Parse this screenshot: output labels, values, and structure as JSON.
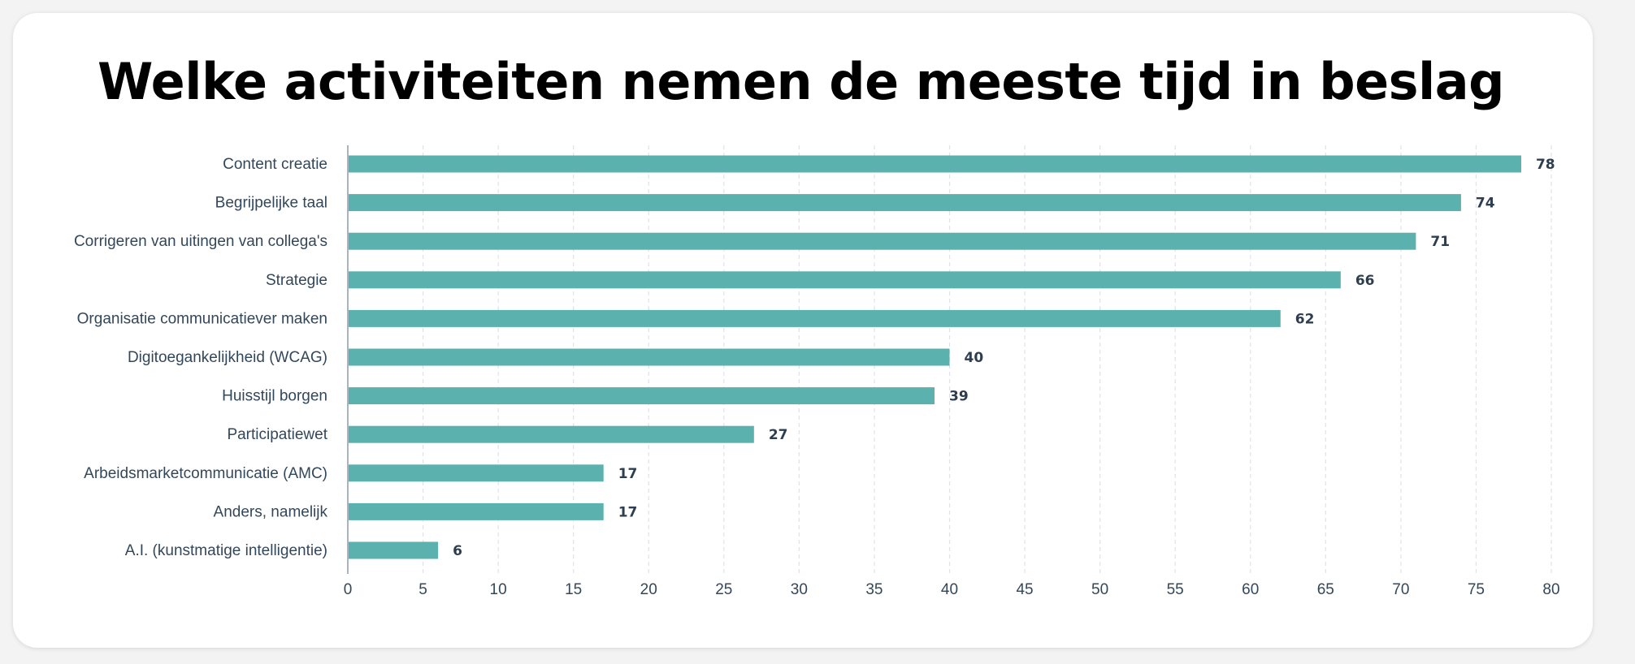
{
  "title": "Welke activiteiten nemen de meeste tijd in beslag",
  "colors": {
    "bar": "#5bb1ad",
    "grid": "#dfe3e8",
    "axis": "#a9b4c2",
    "text": "#33475b",
    "value_text": "#2d3e50"
  },
  "chart_data": {
    "type": "bar",
    "orientation": "horizontal",
    "title": "Welke activiteiten nemen de meeste tijd in beslag",
    "categories": [
      "Content creatie",
      "Begrijpelijke taal",
      "Corrigeren van uitingen van collega's",
      "Strategie",
      "Organisatie communicatiever maken",
      "Digitoegankelijkheid (WCAG)",
      "Huisstijl borgen",
      "Participatiewet",
      "Arbeidsmarketcommunicatie (AMC)",
      "Anders, namelijk",
      "A.I. (kunstmatige intelligentie)"
    ],
    "values": [
      78,
      74,
      71,
      66,
      62,
      40,
      39,
      27,
      17,
      17,
      6
    ],
    "xlabel": "",
    "ylabel": "",
    "xlim": [
      0,
      80
    ],
    "xticks": [
      0,
      5,
      10,
      15,
      20,
      25,
      30,
      35,
      40,
      45,
      50,
      55,
      60,
      65,
      70,
      75,
      80
    ],
    "grid": "vertical dashed",
    "data_labels": true
  }
}
